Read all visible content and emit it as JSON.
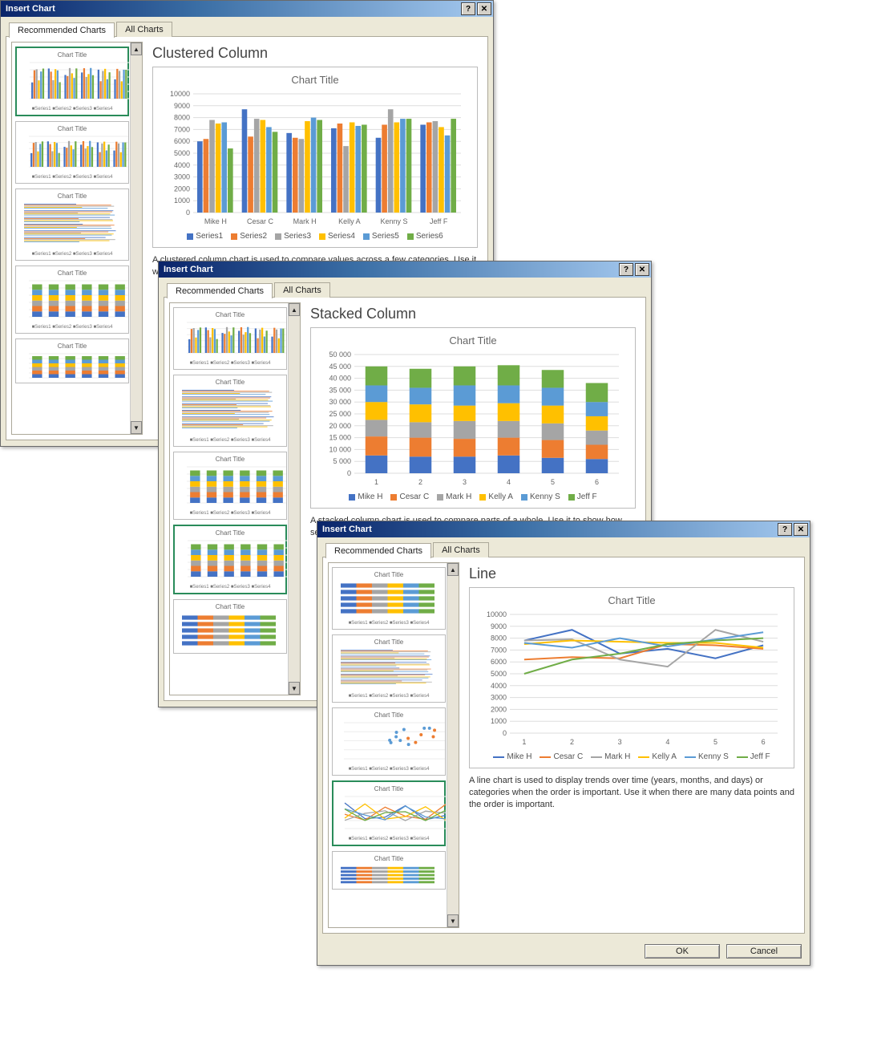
{
  "dialog_title": "Insert Chart",
  "tabs": {
    "recommended": "Recommended Charts",
    "all": "All Charts"
  },
  "help_glyph": "?",
  "close_glyph": "✕",
  "scroll_up": "▲",
  "scroll_down": "▼",
  "thumb_title": "Chart Title",
  "colors": {
    "s1": "#4472c4",
    "s2": "#ed7d31",
    "s3": "#a5a5a5",
    "s4": "#ffc000",
    "s5": "#5b9bd5",
    "s6": "#70ad47"
  },
  "d1": {
    "heading": "Clustered Column",
    "chart_title": "Chart Title",
    "desc": "A clustered column chart is used to compare values across a few categories. Use it when the order of categories is not important.",
    "ymax": 10000,
    "ytick": 1000,
    "categories": [
      "Mike H",
      "Cesar C",
      "Mark H",
      "Kelly A",
      "Kenny S",
      "Jeff F"
    ],
    "series_names": [
      "Series1",
      "Series2",
      "Series3",
      "Series4",
      "Series5",
      "Series6"
    ],
    "values": [
      [
        6000,
        6200,
        7800,
        7500,
        7600,
        5400
      ],
      [
        8700,
        6400,
        7900,
        7800,
        7200,
        6800
      ],
      [
        6700,
        6300,
        6200,
        7700,
        8000,
        7800
      ],
      [
        7100,
        7500,
        5600,
        7600,
        7300,
        7400
      ],
      [
        6300,
        7400,
        8700,
        7600,
        7900,
        7900
      ],
      [
        7400,
        7600,
        7700,
        7200,
        6500,
        7900
      ]
    ],
    "thumb_legend": "■Series1 ■Series2 ■Series3 ■Series4"
  },
  "d2": {
    "heading": "Stacked Column",
    "chart_title": "Chart Title",
    "desc": "A stacked column chart is used to compare parts of a whole. Use it to show how segments of a whole change over time.",
    "ymax": 50000,
    "ytick": 5000,
    "categories": [
      "1",
      "2",
      "3",
      "4",
      "5",
      "6"
    ],
    "series_names": [
      "Mike H",
      "Cesar C",
      "Mark H",
      "Kelly A",
      "Kenny S",
      "Jeff F"
    ],
    "values": [
      [
        7500,
        8000,
        7000,
        7500,
        7000,
        8000
      ],
      [
        7000,
        8000,
        6500,
        7500,
        7000,
        8000
      ],
      [
        7000,
        7500,
        7500,
        6500,
        8500,
        8000
      ],
      [
        7500,
        7500,
        7000,
        7500,
        7500,
        8500
      ],
      [
        6500,
        7500,
        7000,
        7500,
        7500,
        7500
      ],
      [
        6000,
        6000,
        6000,
        6000,
        6000,
        8000
      ]
    ],
    "thumb_legend": "■Series1 ■Series2 ■Series3 ■Series4"
  },
  "d3": {
    "heading": "Line",
    "chart_title": "Chart Title",
    "desc": "A line chart is used to display trends over time (years, months, and days) or categories when the order is important. Use it when there are many data points and the order is important.",
    "ymax": 10000,
    "ytick": 1000,
    "categories": [
      "1",
      "2",
      "3",
      "4",
      "5",
      "6"
    ],
    "series_names": [
      "Mike H",
      "Cesar C",
      "Mark H",
      "Kelly A",
      "Kenny S",
      "Jeff F"
    ],
    "values": [
      [
        7800,
        8700,
        6700,
        7100,
        6300,
        7400
      ],
      [
        6200,
        6400,
        6300,
        7500,
        7400,
        7100
      ],
      [
        7800,
        7900,
        6200,
        5600,
        8700,
        7700
      ],
      [
        7500,
        7800,
        7700,
        7600,
        7600,
        7200
      ],
      [
        7600,
        7200,
        8000,
        7300,
        7900,
        8500
      ],
      [
        5000,
        6200,
        6700,
        7500,
        7800,
        8000
      ]
    ],
    "thumb_legend": "■Series1 ■Series2 ■Series3 ■Series4",
    "buttons": {
      "ok": "OK",
      "cancel": "Cancel"
    }
  }
}
